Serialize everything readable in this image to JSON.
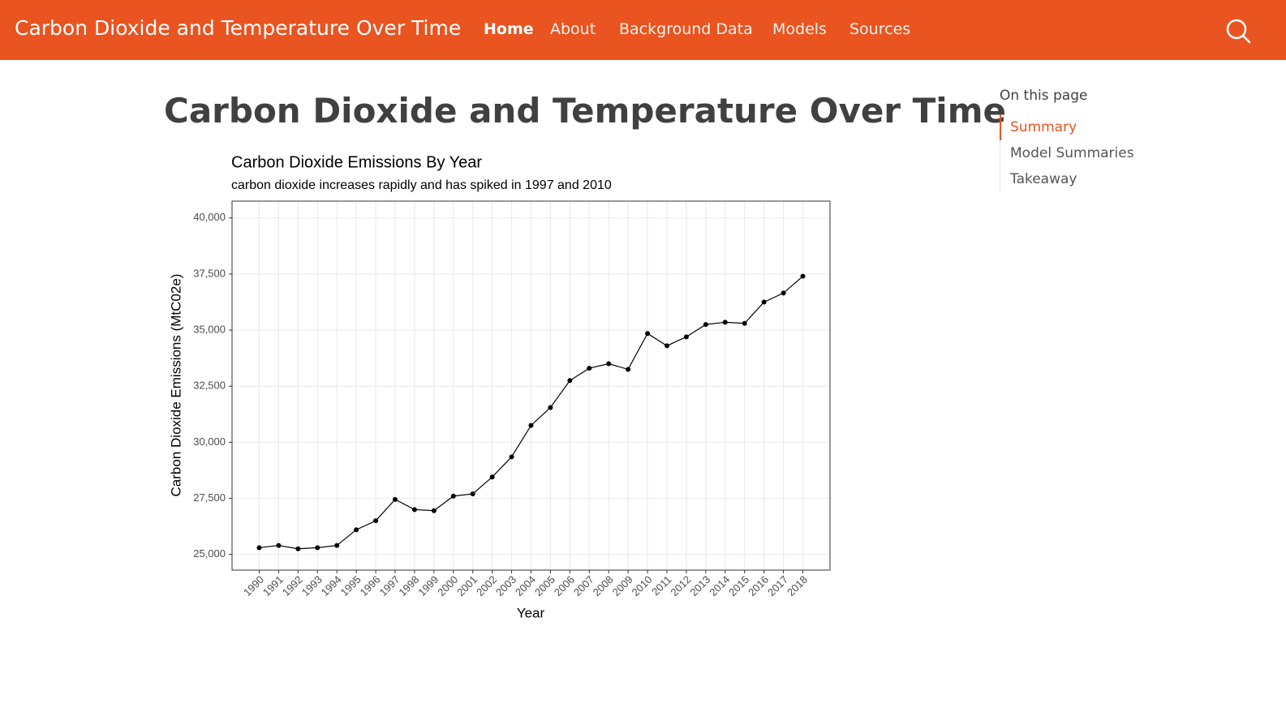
{
  "navbar": {
    "brand": "Carbon Dioxide and Temperature Over Time",
    "links": [
      "Home",
      "About",
      "Background Data",
      "Models",
      "Sources"
    ]
  },
  "page_title": "Carbon Dioxide and Temperature Over Time",
  "toc": {
    "heading": "On this page",
    "items": [
      "Summary",
      "Model Summaries",
      "Takeaway"
    ]
  },
  "chart_data": {
    "type": "line",
    "title": "Carbon Dioxide Emissions By Year",
    "subtitle": "carbon dioxide increases rapidly and has spiked in 1997 and 2010",
    "x_label": "Year",
    "y_label": "Carbon Dioxide Emissions (MtC02e)",
    "x": [
      1990,
      1991,
      1992,
      1993,
      1994,
      1995,
      1996,
      1997,
      1998,
      1999,
      2000,
      2001,
      2002,
      2003,
      2004,
      2005,
      2006,
      2007,
      2008,
      2009,
      2010,
      2011,
      2012,
      2013,
      2014,
      2015,
      2016,
      2017,
      2018
    ],
    "values": [
      25300,
      25400,
      25250,
      25300,
      25400,
      26100,
      26500,
      27450,
      27000,
      26950,
      27600,
      27700,
      28450,
      29350,
      30750,
      31550,
      32750,
      33300,
      33500,
      33250,
      34850,
      34300,
      34700,
      35250,
      35350,
      35300,
      36250,
      36650,
      37400
    ],
    "color": "#000000",
    "xlim": [
      1988.6,
      2019.4
    ],
    "xticks": [
      1990,
      1991,
      1992,
      1993,
      1994,
      1995,
      1996,
      1997,
      1998,
      1999,
      2000,
      2001,
      2002,
      2003,
      2004,
      2005,
      2006,
      2007,
      2008,
      2009,
      2010,
      2011,
      2012,
      2013,
      2014,
      2015,
      2016,
      2017,
      2018
    ],
    "ylim": [
      24300,
      40750
    ],
    "yticks": [
      {
        "value": 25000,
        "label": "25,000"
      },
      {
        "value": 27500,
        "label": "27,500"
      },
      {
        "value": 30000,
        "label": "30,000"
      },
      {
        "value": 32500,
        "label": "32,500"
      },
      {
        "value": 35000,
        "label": "35,000"
      },
      {
        "value": 37500,
        "label": "37,500"
      },
      {
        "value": 40000,
        "label": "40,000"
      }
    ],
    "grid": true
  }
}
